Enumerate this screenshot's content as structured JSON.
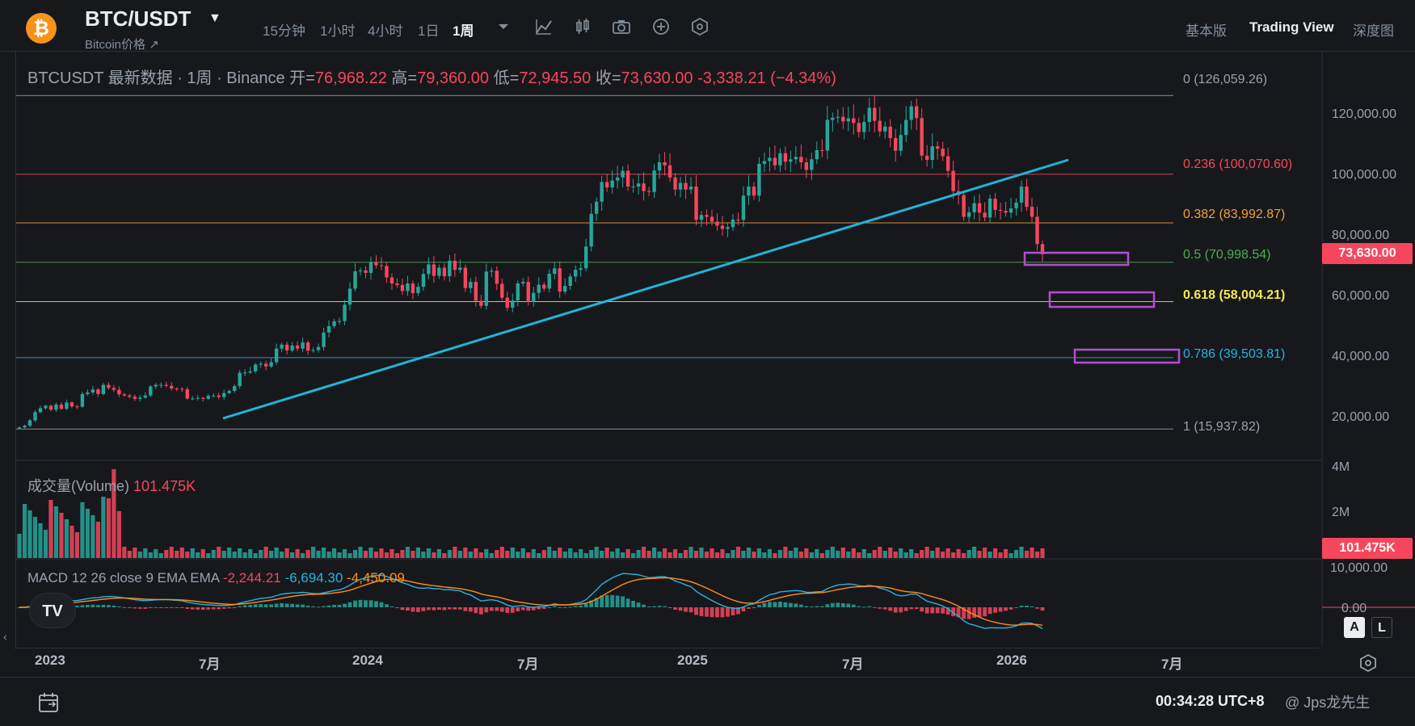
{
  "header": {
    "pair": "BTC/USDT",
    "pair_sub": "Bitcoin价格 ↗",
    "logo_glyph": "₿",
    "intervals": [
      "15分钟",
      "1小时",
      "4小时",
      "1日",
      "1周"
    ],
    "active_interval": "1周",
    "views": [
      "基本版",
      "Trading View",
      "深度图"
    ],
    "active_view": "Trading View"
  },
  "legend": {
    "symbol": "BTCUSDT 最新数据 · 1周 · Binance",
    "open_label": "开=",
    "open": "76,968.22",
    "high_label": "高=",
    "high": "79,360.00",
    "low_label": "低=",
    "low": "72,945.50",
    "close_label": "收=",
    "close": "73,630.00",
    "change": "-3,338.21 (−4.34%)"
  },
  "fib": [
    {
      "label": "0 (126,059.26)",
      "level": 126059.26,
      "color": "#9aa2ad"
    },
    {
      "label": "0.236 (100,070.60)",
      "level": 100070.6,
      "color": "#f6465d"
    },
    {
      "label": "0.382 (83,992.87)",
      "level": 83992.87,
      "color": "#f0a030"
    },
    {
      "label": "0.5 (70,998.54)",
      "level": 70998.54,
      "color": "#4caf50"
    },
    {
      "label": "0.618 (58,004.21)",
      "level": 58004.21,
      "color": "#f5e94c"
    },
    {
      "label": "0.786 (39,503.81)",
      "level": 39503.81,
      "color": "#26b3e0"
    },
    {
      "label": "1 (15,937.82)",
      "level": 15937.82,
      "color": "#9aa2ad"
    }
  ],
  "price_scale": {
    "ticks": [
      "120,000.00",
      "100,000.00",
      "80,000.00",
      "60,000.00",
      "40,000.00",
      "20,000.00"
    ],
    "tick_values": [
      120000,
      100000,
      80000,
      60000,
      40000,
      20000
    ],
    "last_price": "73,630.00"
  },
  "volume": {
    "label": "成交量(Volume)",
    "value": "101.475K",
    "ticks": [
      "4M",
      "2M"
    ],
    "tag": "101.475K"
  },
  "macd": {
    "label": "MACD 12 26 close 9 EMA EMA",
    "hist": "-2,244.21",
    "macd": "-6,694.30",
    "signal": "-4,450.09",
    "ticks": [
      "10,000.00",
      "0.00"
    ]
  },
  "time_axis": [
    "2023",
    "7月",
    "2024",
    "7月",
    "2025",
    "7月",
    "2026",
    "7月"
  ],
  "bottom": {
    "clock": "00:34:28 UTC+8",
    "watermark": "@ Jps龙先生"
  },
  "scale_buttons": [
    "A",
    "L"
  ],
  "tv_badge": "TV",
  "colors": {
    "up": "#26a69a",
    "down": "#f6465d",
    "trendline": "#1fb4da",
    "target_box": "#b14ed1",
    "bg": "#17181c"
  },
  "chart_data": {
    "type": "candlestick",
    "timeframe": "1周",
    "ylim": [
      10000,
      135000
    ],
    "series_close": [
      16500,
      17000,
      18800,
      21500,
      22800,
      23600,
      22300,
      24000,
      22600,
      24700,
      23400,
      23300,
      27500,
      28000,
      29000,
      27500,
      30500,
      29500,
      28900,
      27400,
      27000,
      26600,
      25900,
      26300,
      27000,
      30000,
      30500,
      30500,
      30200,
      29300,
      29200,
      29100,
      26000,
      26000,
      26200,
      25900,
      26900,
      27000,
      26500,
      27800,
      28500,
      30100,
      34500,
      34600,
      35000,
      37200,
      37500,
      36600,
      38000,
      42500,
      43800,
      41900,
      43500,
      42500,
      44500,
      41800,
      42000,
      43000,
      47800,
      49900,
      51500,
      51600,
      57000,
      62300,
      68000,
      68300,
      67500,
      71000,
      70000,
      69800,
      66000,
      64000,
      63500,
      61500,
      64000,
      60800,
      62900,
      67100,
      70300,
      66500,
      69200,
      66400,
      71500,
      68500,
      69200,
      62500,
      64500,
      58300,
      56600,
      67900,
      68200,
      63900,
      59300,
      56000,
      58400,
      64000,
      64500,
      57900,
      60900,
      63600,
      62300,
      67200,
      69000,
      61300,
      63200,
      66300,
      68500,
      69000,
      76200,
      87000,
      91000,
      97500,
      95700,
      98000,
      99000,
      101200,
      96000,
      96000,
      97000,
      94500,
      94200,
      101300,
      104000,
      103000,
      99000,
      95000,
      97200,
      95000,
      96000,
      85000,
      86600,
      86000,
      84400,
      83100,
      82000,
      82600,
      85100,
      85000,
      93000,
      96000,
      93000,
      103500,
      104400,
      105500,
      103000,
      107000,
      104200,
      105000,
      105800,
      104000,
      101500,
      105000,
      108000,
      107900,
      118000,
      118700,
      119000,
      117500,
      118500,
      117000,
      114000,
      117300,
      122000,
      117700,
      114200,
      115800,
      112000,
      107800,
      113000,
      118000,
      122500,
      118600,
      106200,
      104800,
      109300,
      108500,
      106000,
      101200,
      94500,
      93200,
      86000,
      87500,
      90500,
      87400,
      85800,
      92000,
      88300,
      88000,
      87400,
      88800,
      90700,
      96000,
      89300,
      86000,
      77000,
      73630
    ]
  }
}
